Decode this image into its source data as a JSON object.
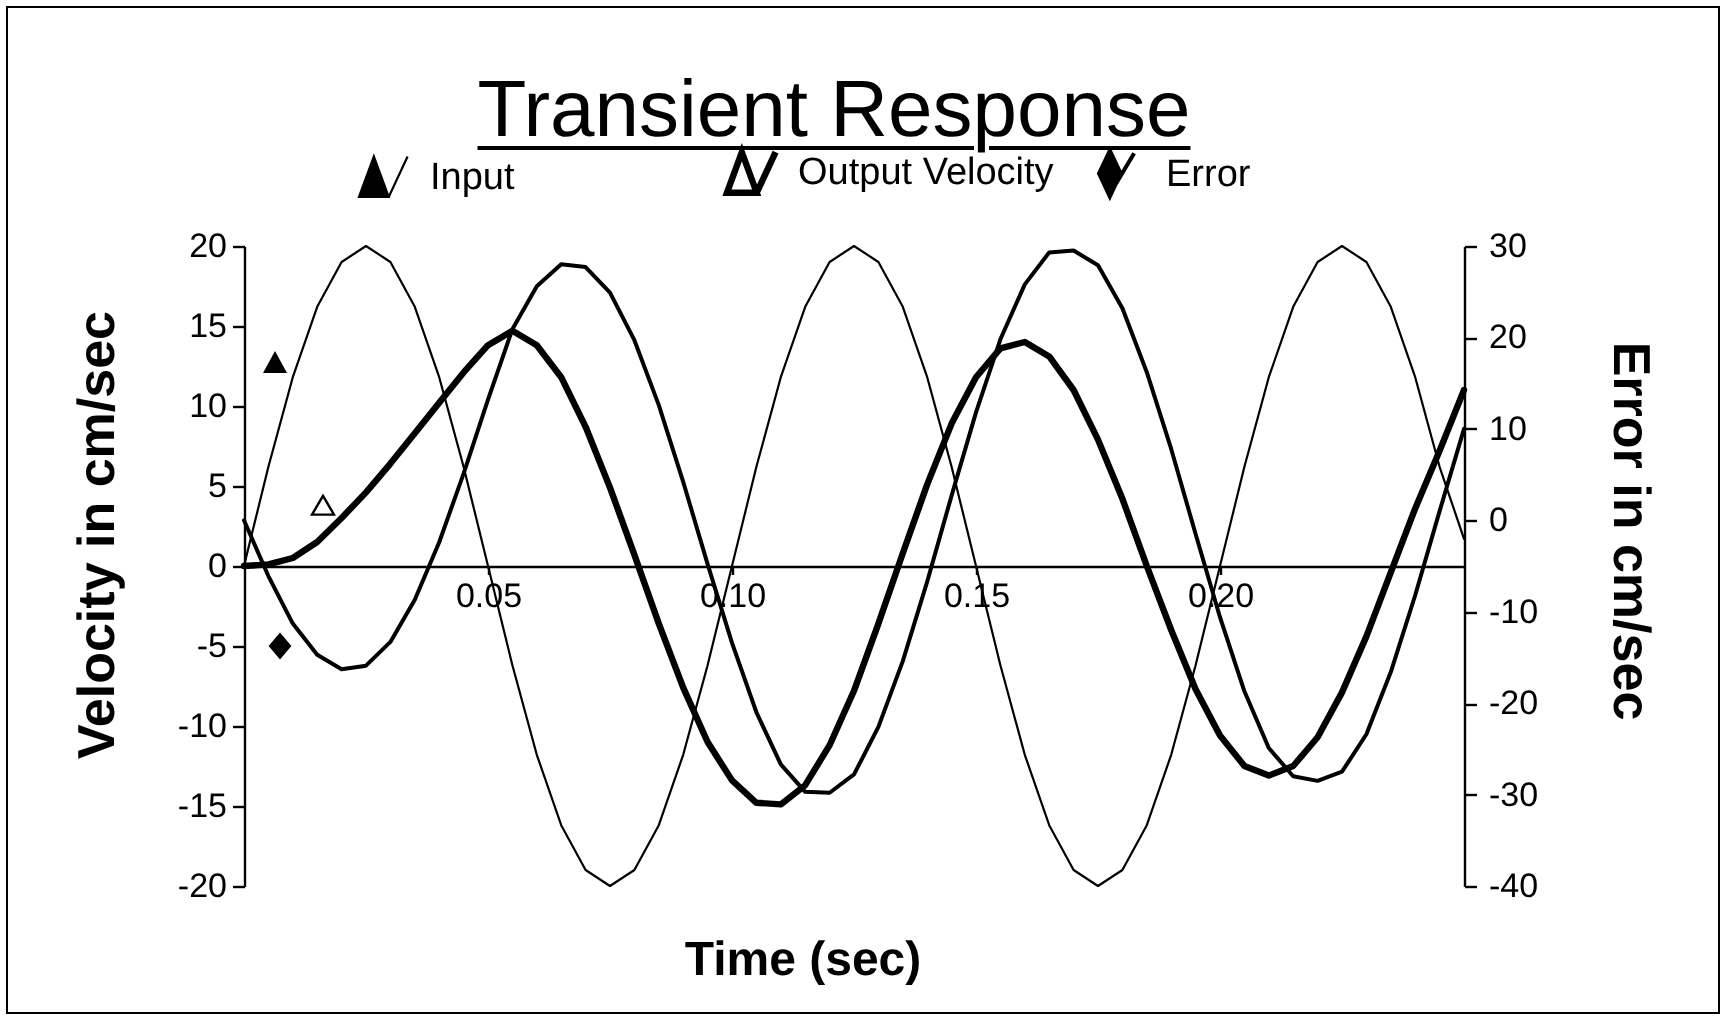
{
  "chart_data": {
    "type": "line",
    "title": "Transient Response",
    "xlabel": "Time (sec)",
    "ylabel": "Velocity in cm/sec",
    "y2label": "Error in cm/sec",
    "x": [
      0,
      0.005,
      0.01,
      0.015,
      0.02,
      0.025,
      0.03,
      0.035,
      0.04,
      0.045,
      0.05,
      0.055,
      0.06,
      0.065,
      0.07,
      0.075,
      0.08,
      0.085,
      0.09,
      0.095,
      0.1,
      0.105,
      0.11,
      0.115,
      0.12,
      0.125,
      0.13,
      0.135,
      0.14,
      0.145,
      0.15,
      0.155,
      0.16,
      0.165,
      0.17,
      0.175,
      0.18,
      0.185,
      0.19,
      0.195,
      0.2,
      0.205,
      0.21,
      0.215,
      0.22,
      0.225,
      0.23,
      0.235,
      0.24,
      0.245,
      0.25
    ],
    "series": [
      {
        "name": "Input",
        "color": "#000000",
        "values": [
          0,
          6.2,
          11.8,
          16.2,
          19,
          20,
          19,
          16.2,
          11.8,
          6.2,
          0,
          -6.2,
          -11.8,
          -16.2,
          -19,
          -20,
          -19,
          -16.2,
          -11.8,
          -6.2,
          0,
          6.2,
          11.8,
          16.2,
          19,
          20,
          19,
          16.2,
          11.8,
          6.2,
          0,
          -6.2,
          -11.8,
          -16.2,
          -19,
          -20,
          -19,
          -16.2,
          -11.8,
          -6.2,
          0,
          6.2,
          11.8,
          16.2,
          19,
          20,
          19,
          16.2,
          11.8,
          6.2,
          1.7
        ]
      },
      {
        "name": "Output Velocity",
        "color": "#000000",
        "values": [
          0,
          0.1,
          0.5,
          1.5,
          3,
          4.6,
          6.4,
          8.3,
          10.2,
          12.1,
          13.8,
          14.7,
          13.8,
          11.8,
          8.7,
          4.9,
          0.7,
          -3.6,
          -7.6,
          -11,
          -13.4,
          -14.8,
          -14.9,
          -13.7,
          -11.2,
          -7.8,
          -3.6,
          0.8,
          5.1,
          8.9,
          11.8,
          13.6,
          14,
          13.1,
          11,
          7.9,
          4.2,
          0,
          -4,
          -7.7,
          -10.6,
          -12.5,
          -13.1,
          -12.5,
          -10.7,
          -7.9,
          -4.4,
          -0.4,
          3.6,
          7.2,
          11
        ]
      },
      {
        "name": "Error",
        "color": "#000000",
        "axis": "y2",
        "values": [
          0,
          -6.1,
          -11.3,
          -14.7,
          -16.3,
          -15.9,
          -13.3,
          -8.7,
          -2.4,
          5.1,
          13.2,
          20.9,
          25.6,
          28,
          27.7,
          24.9,
          19.7,
          12.6,
          4.2,
          -4.8,
          -13.4,
          -21,
          -26.7,
          -29.7,
          -29.8,
          -27.8,
          -22.6,
          -15.4,
          -6.7,
          2.7,
          11.8,
          19.8,
          25.8,
          29.3,
          29.5,
          27.9,
          23.2,
          16.2,
          7.8,
          -1.5,
          -10.6,
          -18.7,
          -24.9,
          -28,
          -28.5,
          -27.5,
          -23.4,
          -16.6,
          -8.2,
          1,
          10
        ]
      }
    ],
    "xlim": [
      0,
      0.25
    ],
    "xticks": [
      0.05,
      {
        "value": 0.1,
        "label": "0.10"
      },
      0.15,
      {
        "value": 0.2,
        "label": "0.20"
      }
    ],
    "ylim": [
      -20,
      20
    ],
    "yticks": [
      -20,
      -15,
      -10,
      -5,
      0,
      5,
      10,
      15,
      20
    ],
    "y2lim": [
      -40,
      30
    ],
    "y2ticks": [
      -40,
      -30,
      -20,
      -10,
      0,
      10,
      20,
      30
    ],
    "legend": "top"
  }
}
